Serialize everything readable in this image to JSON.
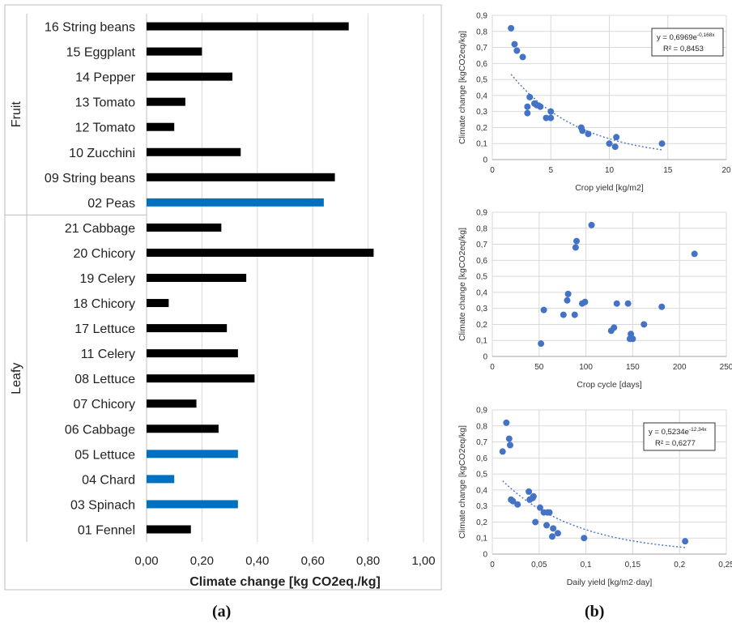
{
  "panel_labels": {
    "a": "(a)",
    "b": "(b)"
  },
  "chart_data": [
    {
      "type": "bar",
      "orientation": "horizontal",
      "xlabel": "Climate change [kg CO2eq./kg]",
      "xlim": [
        0,
        1.0
      ],
      "x_ticks": [
        "0,00",
        "0,20",
        "0,40",
        "0,60",
        "0,80",
        "1,00"
      ],
      "grid": true,
      "groups": [
        {
          "name": "Fruit",
          "start": 0,
          "end": 7
        },
        {
          "name": "Leafy",
          "start": 8,
          "end": 20
        }
      ],
      "categories": [
        "16 String beans",
        "15 Eggplant",
        "14 Pepper",
        "13 Tomato",
        "12 Tomato",
        "10 Zucchini",
        "09 String beans",
        "02 Peas",
        "21 Cabbage",
        "20 Chicory",
        "19 Celery",
        "18 Chicory",
        "17 Lettuce",
        "11 Celery",
        "08 Lettuce",
        "07 Chicory",
        "06 Cabbage",
        "05 Lettuce",
        "04 Chard",
        "03 Spinach",
        "01 Fennel"
      ],
      "values": [
        0.73,
        0.2,
        0.31,
        0.14,
        0.1,
        0.34,
        0.68,
        0.64,
        0.27,
        0.82,
        0.36,
        0.08,
        0.29,
        0.33,
        0.39,
        0.18,
        0.26,
        0.33,
        0.1,
        0.33,
        0.16
      ],
      "highlighted": [
        false,
        false,
        false,
        false,
        false,
        false,
        false,
        true,
        false,
        false,
        false,
        false,
        false,
        false,
        false,
        false,
        false,
        true,
        true,
        true,
        false
      ],
      "colors": {
        "default": "#000000",
        "highlight": "#0070c0"
      }
    },
    {
      "type": "scatter",
      "xlabel": "Crop yield [kg/m2]",
      "ylabel": "Climate change [kgCO2eq/kg]",
      "xlim": [
        0,
        20
      ],
      "ylim": [
        0,
        0.9
      ],
      "x_ticks": [
        "0",
        "5",
        "10",
        "15",
        "20"
      ],
      "y_ticks": [
        "0",
        "0,1",
        "0,2",
        "0,3",
        "0,4",
        "0,5",
        "0,6",
        "0,7",
        "0,8",
        "0,9"
      ],
      "grid": true,
      "x": [
        1.6,
        1.9,
        2.1,
        2.6,
        3.0,
        3.2,
        3.6,
        3.8,
        4.1,
        4.6,
        5.0,
        5.0,
        7.6,
        7.7,
        8.2,
        10.0,
        10.5,
        10.6,
        14.5,
        3.0
      ],
      "y": [
        0.82,
        0.72,
        0.68,
        0.64,
        0.33,
        0.39,
        0.35,
        0.34,
        0.33,
        0.26,
        0.26,
        0.3,
        0.2,
        0.18,
        0.16,
        0.1,
        0.08,
        0.14,
        0.1,
        0.29
      ],
      "trendline": {
        "a": 0.6969,
        "b": -0.168,
        "x_from": 1.6,
        "x_to": 14.5
      },
      "equation_lines": [
        "y = 0,6969e",
        "-0,168x",
        "R² = 0,8453"
      ],
      "marker_color": "#4472c4"
    },
    {
      "type": "scatter",
      "xlabel": "Crop cycle [days]",
      "ylabel": "Climate change [kgCO2eq/kg]",
      "xlim": [
        0,
        250
      ],
      "ylim": [
        0,
        0.9
      ],
      "x_ticks": [
        "0",
        "50",
        "100",
        "150",
        "200",
        "250"
      ],
      "y_ticks": [
        "0",
        "0,1",
        "0,2",
        "0,3",
        "0,4",
        "0,5",
        "0,6",
        "0,7",
        "0,8",
        "0,9"
      ],
      "grid": true,
      "x": [
        52,
        55,
        76,
        80,
        81,
        88,
        89,
        90,
        96,
        99,
        106,
        127,
        130,
        133,
        145,
        147,
        148,
        150,
        162,
        181,
        216
      ],
      "y": [
        0.08,
        0.29,
        0.26,
        0.35,
        0.39,
        0.26,
        0.68,
        0.72,
        0.33,
        0.34,
        0.82,
        0.16,
        0.18,
        0.33,
        0.33,
        0.11,
        0.14,
        0.11,
        0.2,
        0.31,
        0.64
      ],
      "marker_color": "#4472c4"
    },
    {
      "type": "scatter",
      "xlabel": "Daily yield [kg/m2·day]",
      "ylabel": "Climate change [kgCO2eq/kg]",
      "xlim": [
        0,
        0.25
      ],
      "ylim": [
        0,
        0.9
      ],
      "x_ticks": [
        "0",
        "0,05",
        "0,1",
        "0,15",
        "0,2",
        "0,25"
      ],
      "y_ticks": [
        "0",
        "0,1",
        "0,2",
        "0,3",
        "0,4",
        "0,5",
        "0,6",
        "0,7",
        "0,8",
        "0,9"
      ],
      "grid": true,
      "x": [
        0.011,
        0.015,
        0.018,
        0.019,
        0.02,
        0.022,
        0.027,
        0.039,
        0.04,
        0.043,
        0.044,
        0.046,
        0.051,
        0.055,
        0.058,
        0.059,
        0.061,
        0.064,
        0.065,
        0.07,
        0.098,
        0.206
      ],
      "y": [
        0.64,
        0.82,
        0.72,
        0.68,
        0.34,
        0.33,
        0.31,
        0.39,
        0.34,
        0.35,
        0.36,
        0.2,
        0.29,
        0.26,
        0.18,
        0.26,
        0.26,
        0.11,
        0.16,
        0.13,
        0.1,
        0.08
      ],
      "trendline": {
        "a": 0.5234,
        "b": -12.34,
        "x_from": 0.011,
        "x_to": 0.206
      },
      "equation_lines": [
        "y = 0,5234e",
        "-12,34x",
        "R² = 0,6277"
      ],
      "marker_color": "#4472c4"
    }
  ]
}
